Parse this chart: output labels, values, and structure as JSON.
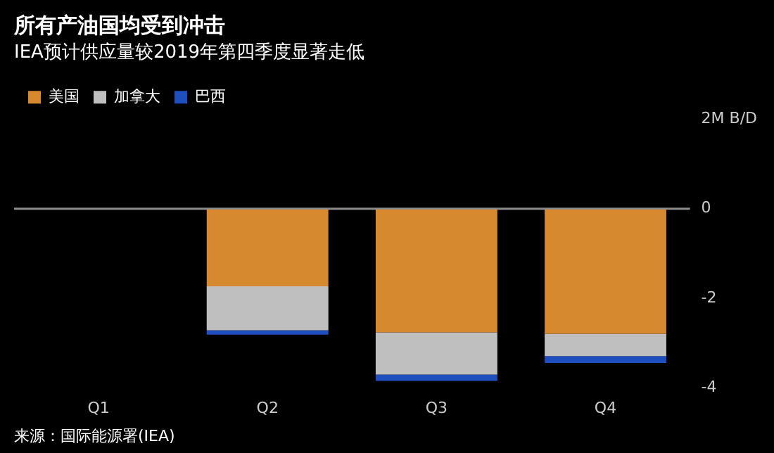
{
  "chart_data": {
    "type": "bar",
    "title": "所有产油国均受到冲击",
    "subtitle": "IEA预计供应量较2019年第四季度显著走低",
    "categories": [
      "Q1",
      "Q2",
      "Q3",
      "Q4"
    ],
    "stacked": true,
    "series": [
      {
        "name": "美国",
        "color": "#d6892e",
        "values": [
          0,
          -1.73,
          -2.76,
          -2.79
        ]
      },
      {
        "name": "加拿大",
        "color": "#bfbfbf",
        "values": [
          0,
          -0.98,
          -0.94,
          -0.5
        ]
      },
      {
        "name": "巴西",
        "color": "#1f4fbf",
        "values": [
          0,
          -0.1,
          -0.14,
          -0.15
        ]
      }
    ],
    "ylim": [
      -4,
      2
    ],
    "yticks": [
      {
        "value": 2,
        "label": "2M B/D"
      },
      0,
      -2,
      -4
    ],
    "ref_lines": [
      {
        "axis": "y",
        "value": 0,
        "color": "#8c8c8c"
      }
    ],
    "legend": "top left",
    "grid": false,
    "annotations": [
      "来源：国际能源署(IEA)"
    ]
  }
}
